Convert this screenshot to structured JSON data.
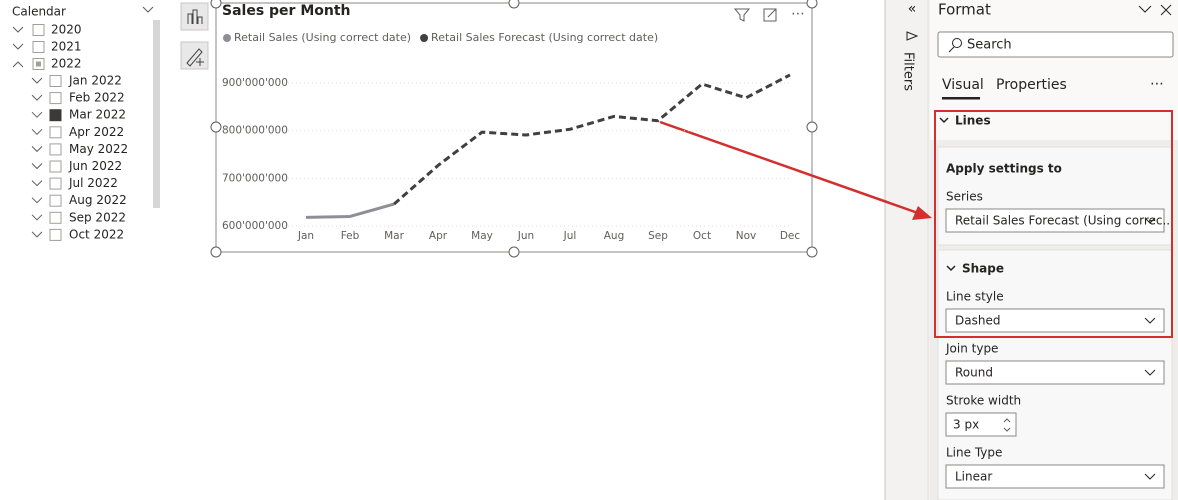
{
  "slicer": {
    "title": "Calendar",
    "years": [
      "2020",
      "2021",
      "2022"
    ],
    "months": [
      {
        "label": "Jan 2022",
        "checked": false
      },
      {
        "label": "Feb 2022",
        "checked": false
      },
      {
        "label": "Mar 2022",
        "checked": true
      },
      {
        "label": "Apr 2022",
        "checked": false
      },
      {
        "label": "May 2022",
        "checked": false
      },
      {
        "label": "Jun 2022",
        "checked": false
      },
      {
        "label": "Jul 2022",
        "checked": false
      },
      {
        "label": "Aug 2022",
        "checked": false
      },
      {
        "label": "Sep 2022",
        "checked": false
      },
      {
        "label": "Oct 2022",
        "checked": false
      }
    ]
  },
  "chart_data": {
    "type": "line",
    "title": "Sales per Month",
    "categories": [
      "Jan",
      "Feb",
      "Mar",
      "Apr",
      "May",
      "Jun",
      "Jul",
      "Aug",
      "Sep",
      "Oct",
      "Nov",
      "Dec"
    ],
    "series": [
      {
        "name": "Retail Sales (Using correct date)",
        "color": "#8e8e96",
        "dashed": false,
        "values": [
          618000000,
          620000000,
          646000000,
          null,
          null,
          null,
          null,
          null,
          null,
          null,
          null,
          null
        ]
      },
      {
        "name": "Retail Sales Forecast (Using correct date)",
        "color": "#404040",
        "dashed": true,
        "values": [
          null,
          null,
          646000000,
          727000000,
          797000000,
          791000000,
          803000000,
          830000000,
          821000000,
          898000000,
          869000000,
          917000000
        ]
      }
    ],
    "ylim": [
      600000000,
      940000000
    ],
    "yticks": [
      {
        "value": 600000000,
        "label": "600'000'000"
      },
      {
        "value": 700000000,
        "label": "700'000'000"
      },
      {
        "value": 800000000,
        "label": "800'000'000"
      },
      {
        "value": 900000000,
        "label": "900'000'000"
      }
    ],
    "grid": true
  },
  "filters_label": "Filters",
  "format_pane": {
    "title": "Format",
    "search_placeholder": "Search",
    "tabs": [
      "Visual",
      "Properties"
    ],
    "section": "Lines",
    "apply_settings": {
      "heading": "Apply settings to",
      "series_label": "Series",
      "series_value": "Retail Sales Forecast (Using correc..."
    },
    "shape": {
      "heading": "Shape",
      "line_style_label": "Line style",
      "line_style_value": "Dashed",
      "join_type_label": "Join type",
      "join_type_value": "Round",
      "stroke_width_label": "Stroke width",
      "stroke_width_value": "3 px",
      "line_type_label": "Line Type",
      "line_type_value": "Linear"
    }
  }
}
